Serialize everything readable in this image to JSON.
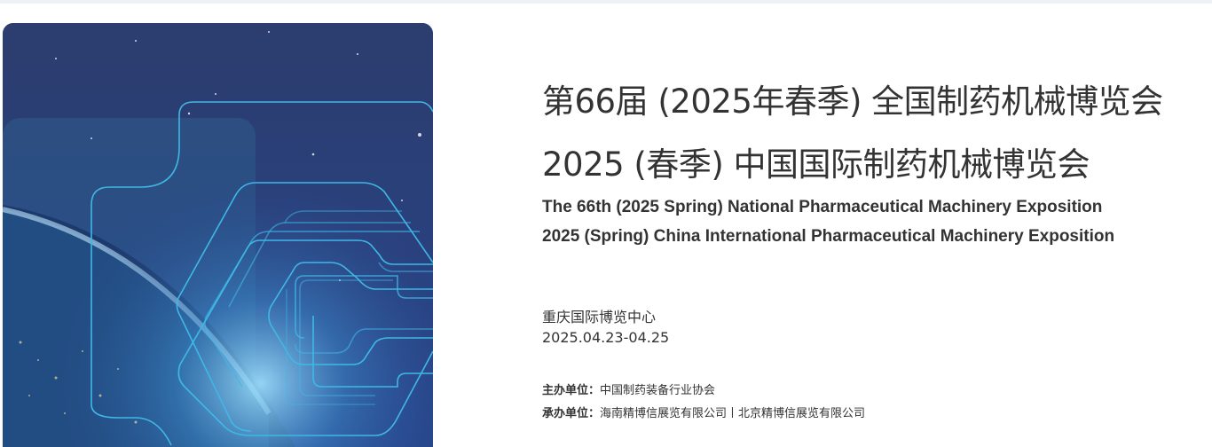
{
  "poster": {
    "icon": "expo-logo-earth-space-image",
    "colors": {
      "space": "#2a3f75",
      "line": "#3fb8e6"
    }
  },
  "title": {
    "zh_line1": "第66届 (2025年春季) 全国制药机械博览会",
    "zh_line2": "2025 (春季) 中国国际制药机械博览会",
    "en_line1": "The 66th (2025 Spring) National Pharmaceutical Machinery Exposition",
    "en_line2": "2025 (Spring) China International Pharmaceutical Machinery Exposition"
  },
  "event": {
    "venue": "重庆国际博览中心",
    "dates": "2025.04.23-04.25"
  },
  "organizers": {
    "host_label": "主办单位：",
    "host_value": "中国制药装备行业协会",
    "organizer_label": "承办单位：",
    "organizer_value": "海南精博信展览有限公司丨北京精博信展览有限公司"
  }
}
